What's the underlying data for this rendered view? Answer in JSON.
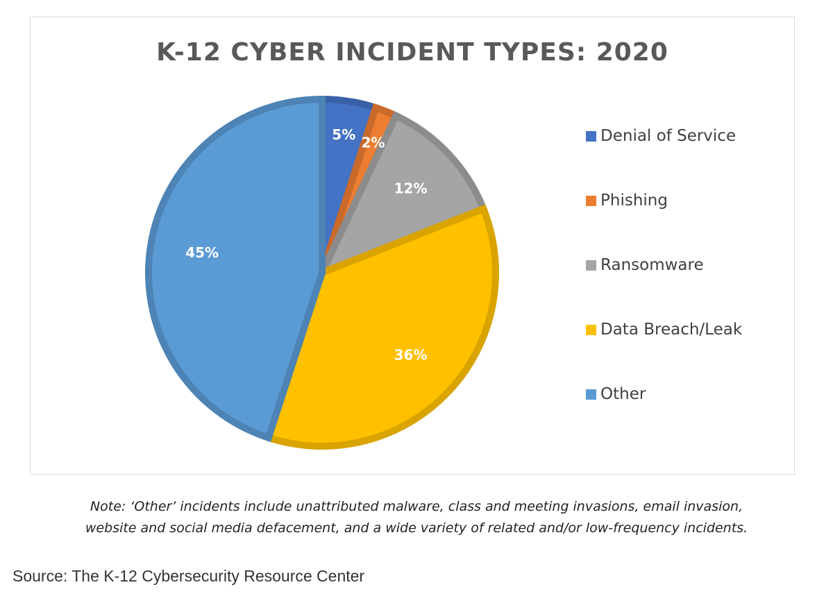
{
  "chart_data": {
    "type": "pie",
    "title": "K-12 CYBER INCIDENT TYPES: 2020",
    "categories": [
      "Denial of Service",
      "Phishing",
      "Ransomware",
      "Data Breach/Leak",
      "Other"
    ],
    "values": [
      5,
      2,
      12,
      36,
      45
    ],
    "data_labels": [
      "5%",
      "2%",
      "12%",
      "36%",
      "45%"
    ],
    "colors": [
      "#4472c4",
      "#ed7d31",
      "#a5a5a5",
      "#ffc000",
      "#5b9bd5"
    ],
    "legend": "right"
  },
  "note": {
    "line1": "Note: ‘Other’ incidents include unattributed malware, class and meeting invasions, email invasion,",
    "line2": "website and social media defacement, and a wide variety of related and/or low-frequency incidents."
  },
  "source": "Source: The K-12 Cybersecurity Resource Center"
}
